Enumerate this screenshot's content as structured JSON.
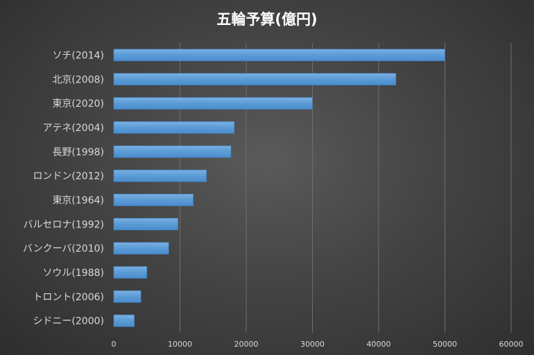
{
  "chart_data": {
    "type": "bar",
    "orientation": "horizontal",
    "title": "五輪予算(億円)",
    "categories": [
      "ソチ(2014)",
      "北京(2008)",
      "東京(2020)",
      "アテネ(2004)",
      "長野(1998)",
      "ロンドン(2012)",
      "東京(1964)",
      "バルセロナ(1992)",
      "バンクーバ(2010)",
      "ソウル(1988)",
      "トロント(2006)",
      "シドニー(2000)"
    ],
    "values": [
      50000,
      42600,
      30000,
      18200,
      17700,
      14000,
      12000,
      9700,
      8300,
      5000,
      4100,
      3100
    ],
    "xlim": [
      0,
      60000
    ],
    "xticks": [
      0,
      10000,
      20000,
      30000,
      40000,
      50000,
      60000
    ],
    "grid": true,
    "legend": false,
    "colors": {
      "bar": "#5b9bd5",
      "bar_edge": "#3f7fbf",
      "text": "#d9d9d9",
      "grid": "#6f6f6f"
    }
  }
}
